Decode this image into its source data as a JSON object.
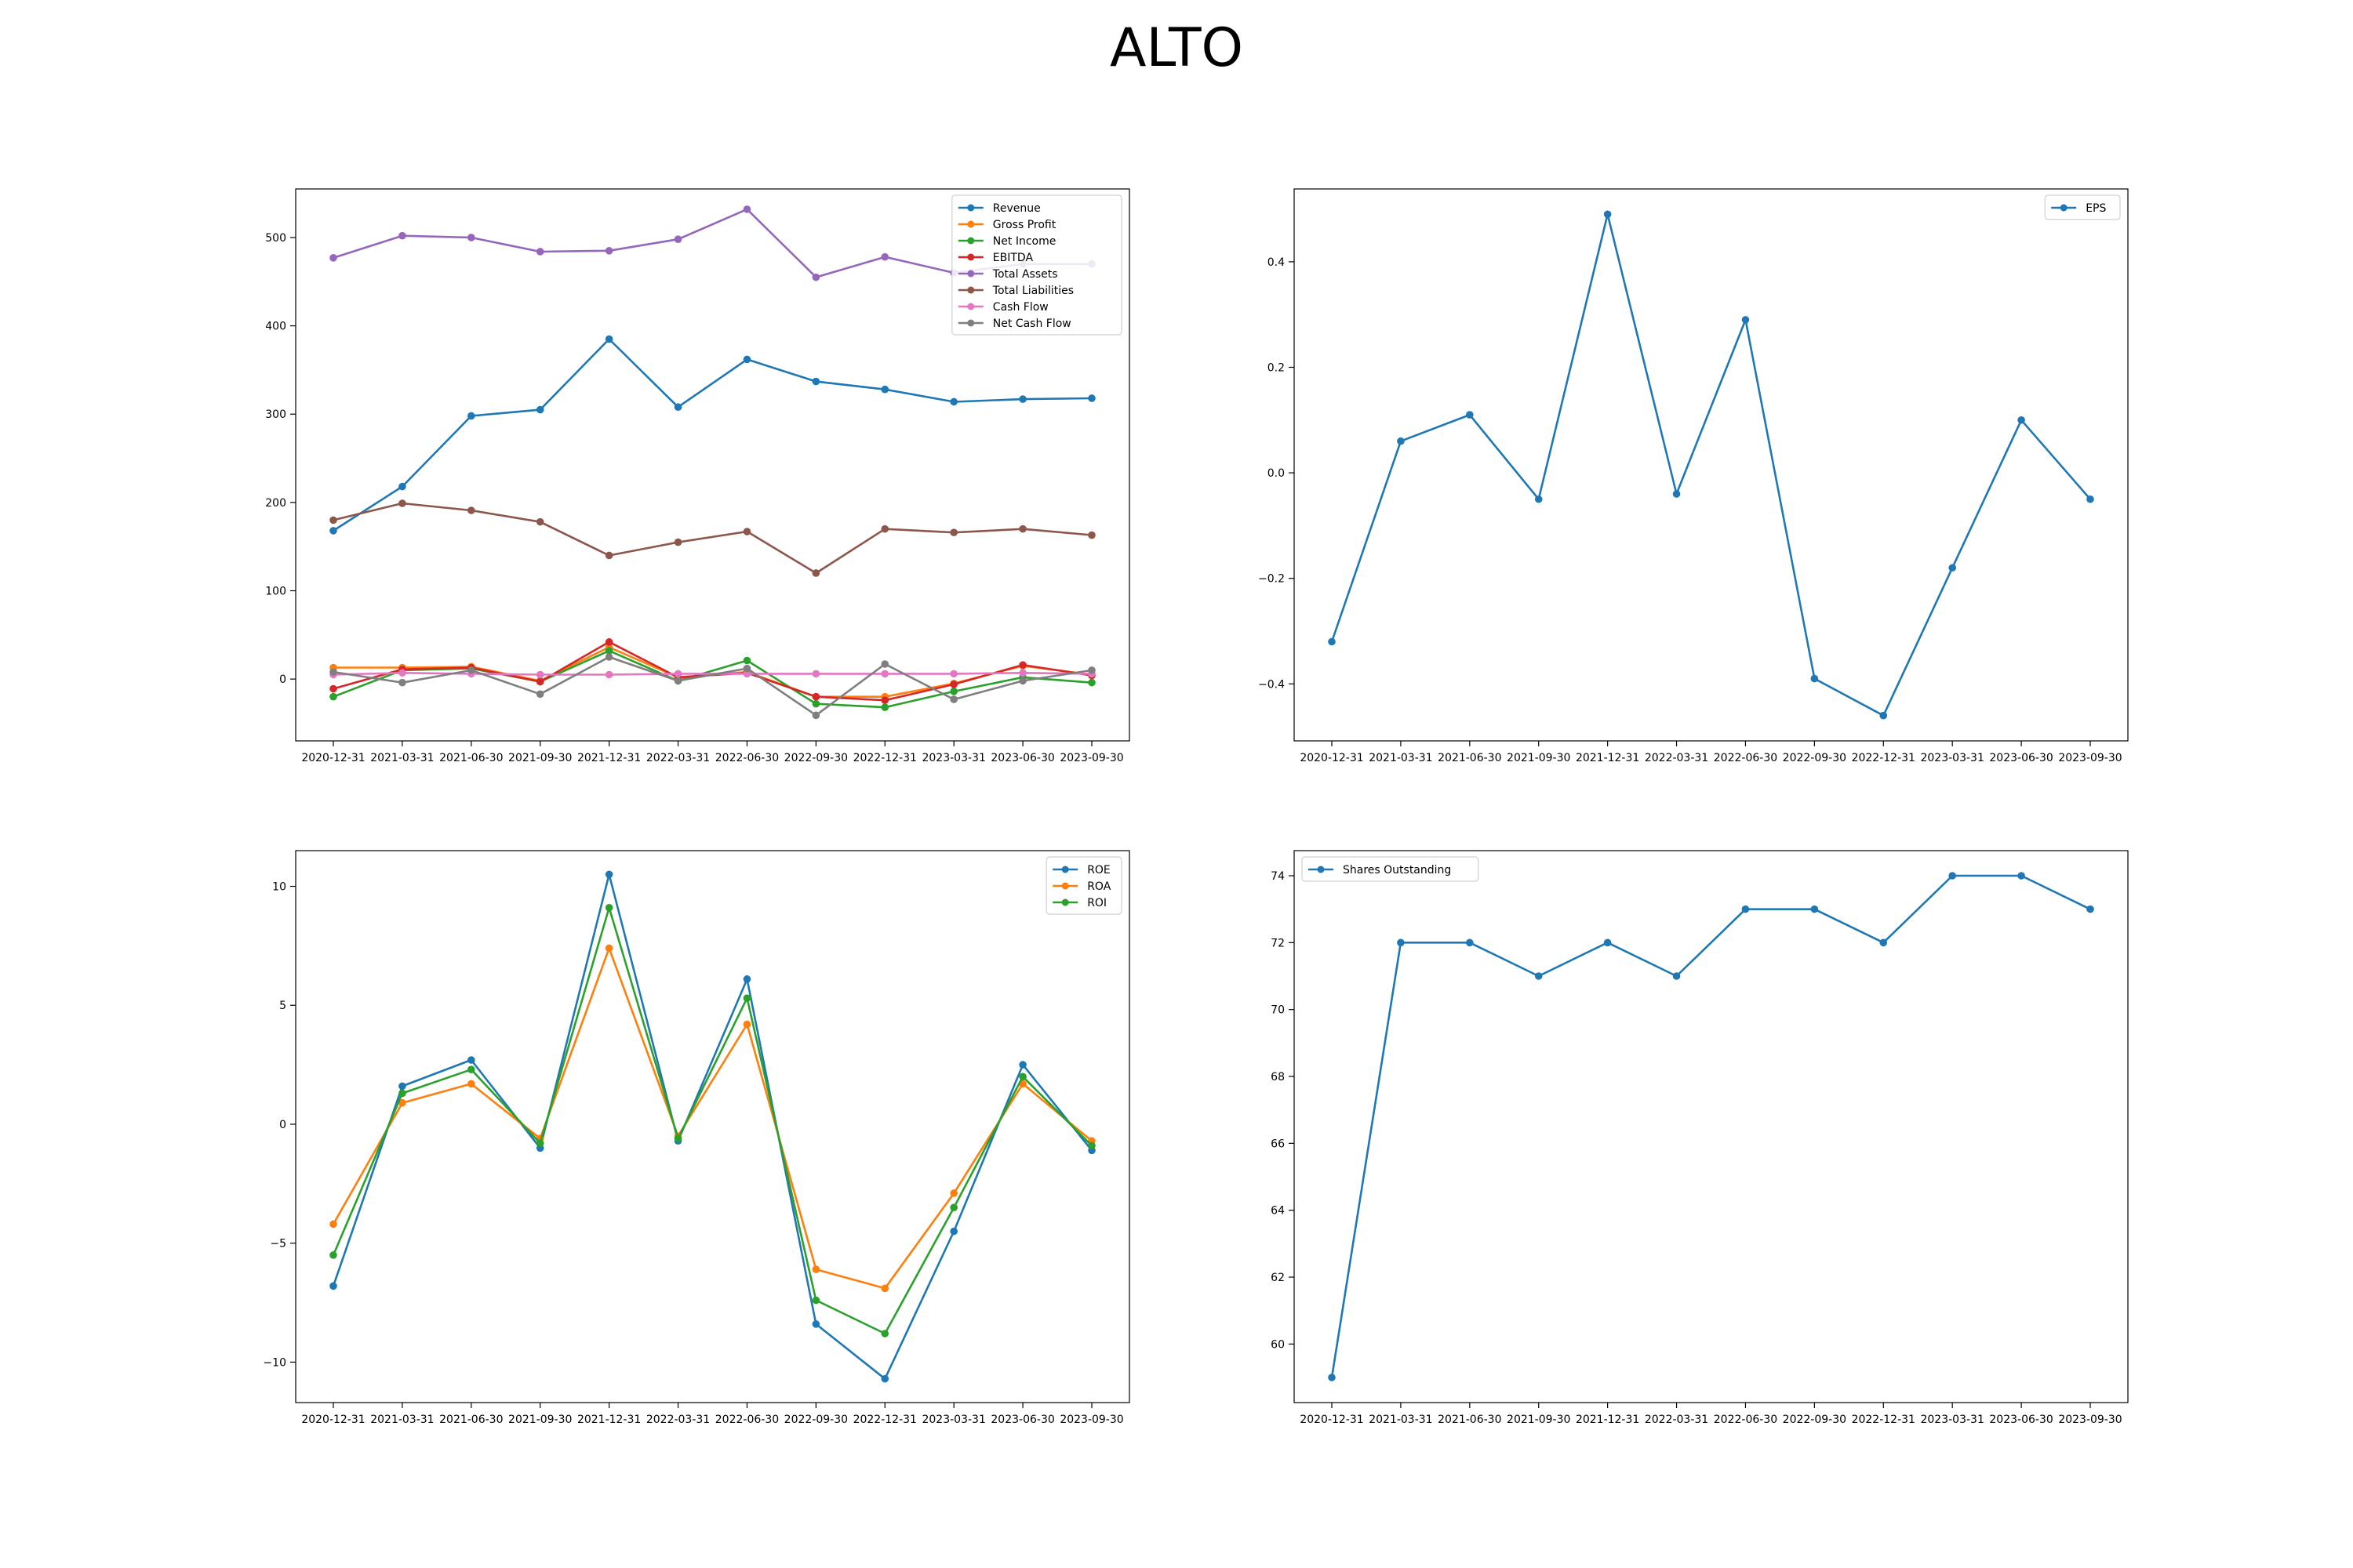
{
  "title": "ALTO",
  "chart_data": [
    {
      "type": "line",
      "title": "",
      "xlabel": "",
      "ylabel": "",
      "categories": [
        "2020-12-31",
        "2021-03-31",
        "2021-06-30",
        "2021-09-30",
        "2021-12-31",
        "2022-03-31",
        "2022-06-30",
        "2022-09-30",
        "2022-12-31",
        "2023-03-31",
        "2023-06-30",
        "2023-09-30"
      ],
      "ylim": [
        -70,
        555
      ],
      "yticks": [
        0,
        100,
        200,
        300,
        400,
        500
      ],
      "legend": "top-right",
      "grid": false,
      "series": [
        {
          "name": "Revenue",
          "color": "#1f77b4",
          "values": [
            168,
            218,
            298,
            305,
            385,
            308,
            362,
            337,
            328,
            314,
            317,
            318
          ]
        },
        {
          "name": "Gross Profit",
          "color": "#ff7f0e",
          "values": [
            13,
            13,
            14,
            -2,
            36,
            2,
            8,
            -20,
            -20,
            -5,
            15,
            5
          ]
        },
        {
          "name": "Net Income",
          "color": "#2ca02c",
          "values": [
            -20,
            10,
            12,
            -3,
            32,
            -2,
            21,
            -28,
            -32,
            -14,
            2,
            -4
          ]
        },
        {
          "name": "EBITDA",
          "color": "#d62728",
          "values": [
            -11,
            11,
            13,
            -3,
            42,
            2,
            7,
            -20,
            -24,
            -6,
            16,
            4
          ]
        },
        {
          "name": "Total Assets",
          "color": "#9467bd",
          "values": [
            477,
            502,
            500,
            484,
            485,
            498,
            532,
            455,
            478,
            460,
            470,
            470
          ]
        },
        {
          "name": "Total Liabilities",
          "color": "#8c564b",
          "values": [
            180,
            199,
            191,
            178,
            140,
            155,
            167,
            120,
            170,
            166,
            170,
            163
          ]
        },
        {
          "name": "Cash Flow",
          "color": "#e377c2",
          "values": [
            5,
            7,
            6,
            5,
            5,
            6,
            6,
            6,
            6,
            6,
            7,
            6
          ]
        },
        {
          "name": "Net Cash Flow",
          "color": "#7f7f7f",
          "values": [
            8,
            -4,
            10,
            -17,
            25,
            -2,
            12,
            -41,
            17,
            -23,
            -2,
            10
          ]
        }
      ]
    },
    {
      "type": "line",
      "title": "",
      "xlabel": "",
      "ylabel": "",
      "categories": [
        "2020-12-31",
        "2021-03-31",
        "2021-06-30",
        "2021-09-30",
        "2021-12-31",
        "2022-03-31",
        "2022-06-30",
        "2022-09-30",
        "2022-12-31",
        "2023-03-31",
        "2023-06-30",
        "2023-09-30"
      ],
      "ylim": [
        -0.508,
        0.538
      ],
      "yticks": [
        -0.4,
        -0.2,
        0.0,
        0.2,
        0.4
      ],
      "tick_decimals": 1,
      "legend": "top-right",
      "grid": false,
      "series": [
        {
          "name": "EPS",
          "color": "#1f77b4",
          "values": [
            -0.32,
            0.06,
            0.11,
            -0.05,
            0.49,
            -0.04,
            0.29,
            -0.39,
            -0.46,
            -0.18,
            0.1,
            -0.05
          ]
        }
      ]
    },
    {
      "type": "line",
      "title": "",
      "xlabel": "",
      "ylabel": "",
      "categories": [
        "2020-12-31",
        "2021-03-31",
        "2021-06-30",
        "2021-09-30",
        "2021-12-31",
        "2022-03-31",
        "2022-06-30",
        "2022-09-30",
        "2022-12-31",
        "2023-03-31",
        "2023-06-30",
        "2023-09-30"
      ],
      "ylim": [
        -11.7,
        11.5
      ],
      "yticks": [
        -10,
        -5,
        0,
        5,
        10
      ],
      "legend": "top-right",
      "grid": false,
      "series": [
        {
          "name": "ROE",
          "color": "#1f77b4",
          "values": [
            -6.8,
            1.6,
            2.7,
            -1.0,
            10.5,
            -0.7,
            6.1,
            -8.4,
            -10.7,
            -4.5,
            2.5,
            -1.1
          ]
        },
        {
          "name": "ROA",
          "color": "#ff7f0e",
          "values": [
            -4.2,
            0.9,
            1.7,
            -0.6,
            7.4,
            -0.5,
            4.2,
            -6.1,
            -6.9,
            -2.9,
            1.7,
            -0.7
          ]
        },
        {
          "name": "ROI",
          "color": "#2ca02c",
          "values": [
            -5.5,
            1.3,
            2.3,
            -0.8,
            9.1,
            -0.6,
            5.3,
            -7.4,
            -8.8,
            -3.5,
            2.0,
            -0.9
          ]
        }
      ]
    },
    {
      "type": "line",
      "title": "",
      "xlabel": "",
      "ylabel": "",
      "categories": [
        "2020-12-31",
        "2021-03-31",
        "2021-06-30",
        "2021-09-30",
        "2021-12-31",
        "2022-03-31",
        "2022-06-30",
        "2022-09-30",
        "2022-12-31",
        "2023-03-31",
        "2023-06-30",
        "2023-09-30"
      ],
      "ylim": [
        58.25,
        74.75
      ],
      "yticks": [
        60,
        62,
        64,
        66,
        68,
        70,
        72,
        74
      ],
      "legend": "top-left",
      "grid": false,
      "series": [
        {
          "name": "Shares Outstanding",
          "color": "#1f77b4",
          "values": [
            59,
            72,
            72,
            71,
            72,
            71,
            73,
            73,
            72,
            74,
            74,
            73
          ]
        }
      ]
    }
  ]
}
